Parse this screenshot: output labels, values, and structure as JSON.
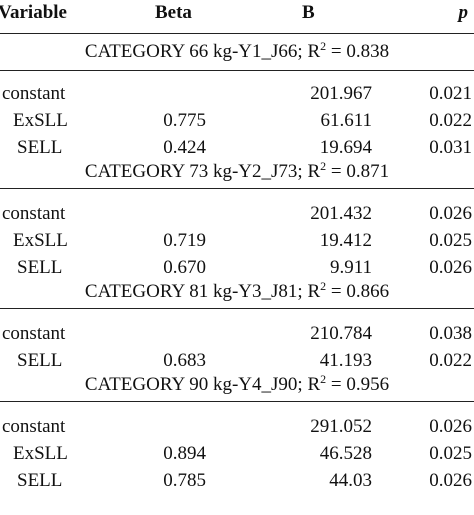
{
  "table": {
    "header": [
      "Variable",
      "Beta",
      "B",
      "p"
    ],
    "groups": [
      {
        "category": {
          "label": "CATEGORY 66 kg-Y1_J66; R",
          "sup": "2",
          "rest": " = 0.838"
        },
        "rows": [
          [
            "constant",
            null,
            "201.967",
            "0.021"
          ],
          [
            "ExSLL",
            "0.775",
            "61.611",
            "0.022"
          ],
          [
            "SELL",
            "0.424",
            "19.694",
            "0.031"
          ]
        ]
      },
      {
        "category": {
          "label": "CATEGORY 73 kg-Y2_J73; R",
          "sup": "2",
          "rest": " = 0.871"
        },
        "rows": [
          [
            "constant",
            null,
            "201.432",
            "0.026"
          ],
          [
            "ExSLL",
            "0.719",
            "19.412",
            "0.025"
          ],
          [
            "SELL",
            "0.670",
            "9.911",
            "0.026"
          ]
        ]
      },
      {
        "category": {
          "label": "CATEGORY 81 kg-Y3_J81; R",
          "sup": "2",
          "rest": " = 0.866"
        },
        "rows": [
          [
            "constant",
            null,
            "210.784",
            "0.038"
          ],
          [
            "SELL",
            "0.683",
            "41.193",
            "0.022"
          ]
        ]
      },
      {
        "category": {
          "label": "CATEGORY 90 kg-Y4_J90; R",
          "sup": "2",
          "rest": " = 0.956"
        },
        "rows": [
          [
            "constant",
            null,
            "291.052",
            "0.026"
          ],
          [
            "ExSLL",
            "0.894",
            "46.528",
            "0.025"
          ],
          [
            "SELL",
            "0.785",
            "44.03",
            "0.026"
          ]
        ]
      }
    ]
  }
}
